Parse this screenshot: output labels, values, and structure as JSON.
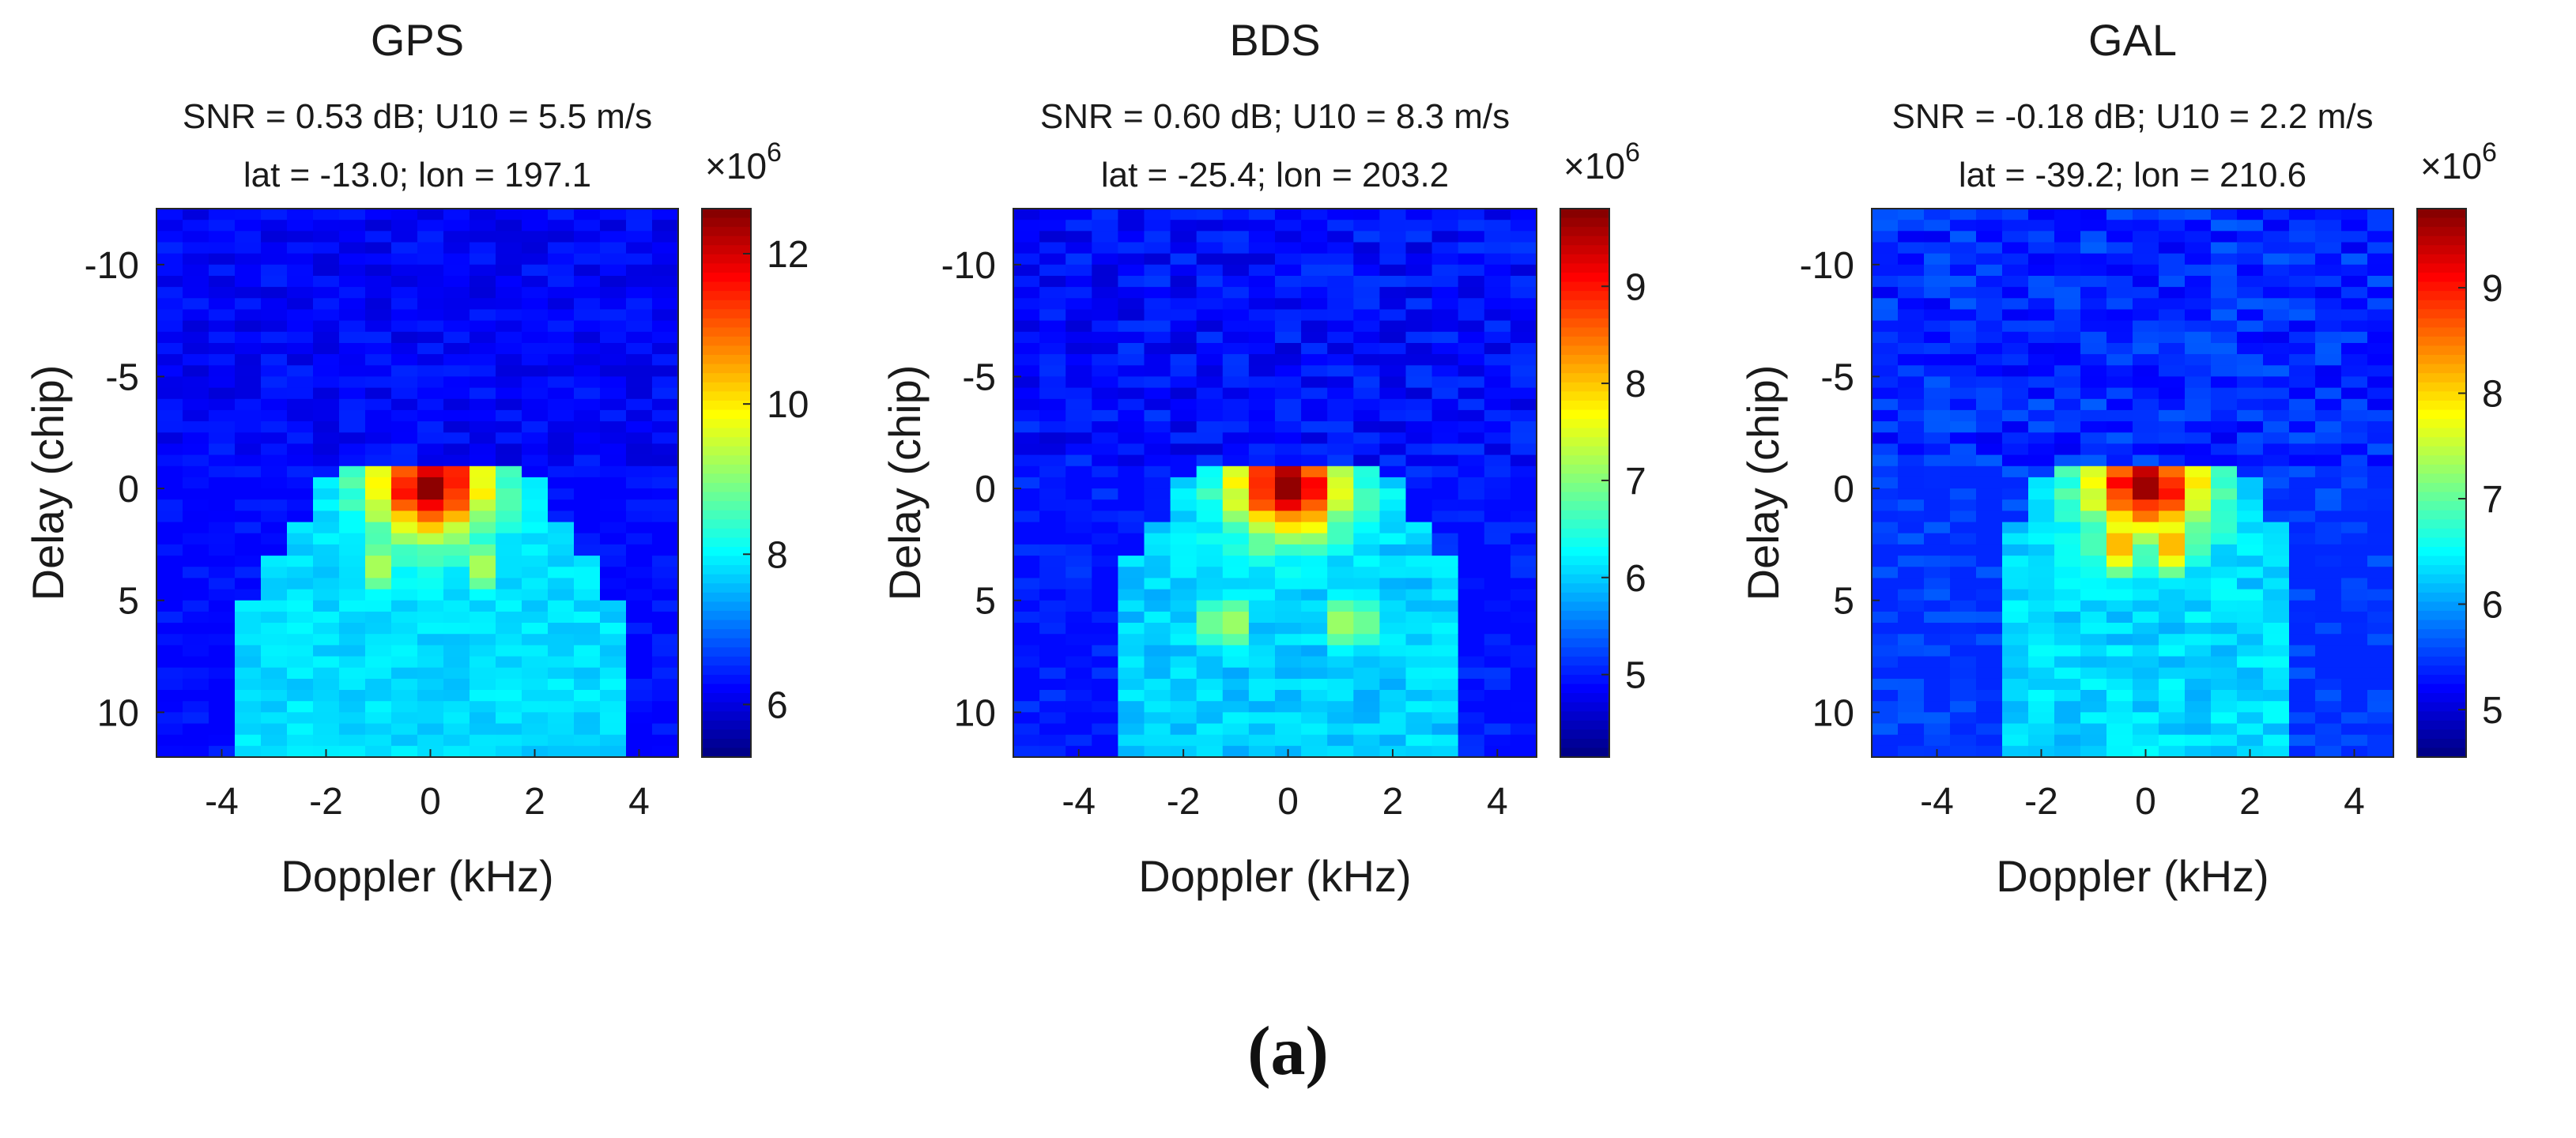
{
  "caption": "(a)",
  "colors": {
    "text": "#1a1a1a",
    "axis": "#262626",
    "colormap": "jet"
  },
  "chart_data": [
    {
      "type": "heatmap",
      "title": "GPS",
      "subtitle_line1": "SNR = 0.53 dB; U10 = 5.5 m/s",
      "subtitle_line2": "lat = -13.0; lon = 197.1",
      "xlabel": "Doppler (kHz)",
      "ylabel": "Delay (chip)",
      "xlim": [
        -5.25,
        4.75
      ],
      "ylim": [
        -12.5,
        12
      ],
      "y_reversed": true,
      "xticks": [
        -4,
        -2,
        0,
        2,
        4
      ],
      "xtick_labels": [
        "-4",
        "-2",
        "0",
        "2",
        "4"
      ],
      "yticks": [
        -10,
        -5,
        0,
        5,
        10
      ],
      "ytick_labels": [
        "-10",
        "-5",
        "0",
        "5",
        "10"
      ],
      "colorbar": {
        "range": [
          5.3,
          12.6
        ],
        "ticks": [
          6,
          8,
          10,
          12
        ],
        "tick_labels": [
          "6",
          "8",
          "10",
          "12"
        ],
        "exponent_label": "×10",
        "exponent": "6"
      },
      "peak": {
        "doppler": 0,
        "delay": 0,
        "value": 12.5
      },
      "background": 6.2,
      "spread_kHz": 3.0,
      "plateau": 7.8,
      "ridge": {
        "delay": 3.5,
        "doppler": 1.0,
        "value": 9.3
      }
    },
    {
      "type": "heatmap",
      "title": "BDS",
      "subtitle_line1": "SNR = 0.60 dB; U10 = 8.3 m/s",
      "subtitle_line2": "lat = -25.4; lon = 203.2",
      "xlabel": "Doppler (kHz)",
      "ylabel": "Delay (chip)",
      "xlim": [
        -5.25,
        4.75
      ],
      "ylim": [
        -12.5,
        12
      ],
      "y_reversed": true,
      "xticks": [
        -4,
        -2,
        0,
        2,
        4
      ],
      "xtick_labels": [
        "-4",
        "-2",
        "0",
        "2",
        "4"
      ],
      "yticks": [
        -10,
        -5,
        0,
        5,
        10
      ],
      "ytick_labels": [
        "-10",
        "-5",
        "0",
        "5",
        "10"
      ],
      "colorbar": {
        "range": [
          4.15,
          9.8
        ],
        "ticks": [
          5,
          6,
          7,
          8,
          9
        ],
        "tick_labels": [
          "5",
          "6",
          "7",
          "8",
          "9"
        ],
        "exponent_label": "×10",
        "exponent": "6"
      },
      "peak": {
        "doppler": 0,
        "delay": 0,
        "value": 9.7
      },
      "background": 4.9,
      "spread_kHz": 2.3,
      "plateau": 6.0,
      "ridge": {
        "delay": 6.0,
        "doppler": 1.2,
        "value": 7.4
      }
    },
    {
      "type": "heatmap",
      "title": "GAL",
      "subtitle_line1": "SNR = -0.18 dB; U10 = 2.2 m/s",
      "subtitle_line2": "lat = -39.2; lon = 210.6",
      "xlabel": "Doppler (kHz)",
      "ylabel": "Delay (chip)",
      "xlim": [
        -5.25,
        4.75
      ],
      "ylim": [
        -12.5,
        12
      ],
      "y_reversed": true,
      "xticks": [
        -4,
        -2,
        0,
        2,
        4
      ],
      "xtick_labels": [
        "-4",
        "-2",
        "0",
        "2",
        "4"
      ],
      "yticks": [
        -10,
        -5,
        0,
        5,
        10
      ],
      "ytick_labels": [
        "-10",
        "-5",
        "0",
        "5",
        "10"
      ],
      "colorbar": {
        "range": [
          4.55,
          9.75
        ],
        "ticks": [
          5,
          6,
          7,
          8,
          9
        ],
        "tick_labels": [
          "5",
          "6",
          "7",
          "8",
          "9"
        ],
        "exponent_label": "×10",
        "exponent": "6"
      },
      "peak": {
        "doppler": 0,
        "delay": 0,
        "value": 9.6
      },
      "background": 5.4,
      "spread_kHz": 1.9,
      "plateau": 6.3,
      "ridge": {
        "delay": 2.5,
        "doppler": 0.5,
        "value": 8.2
      }
    }
  ]
}
